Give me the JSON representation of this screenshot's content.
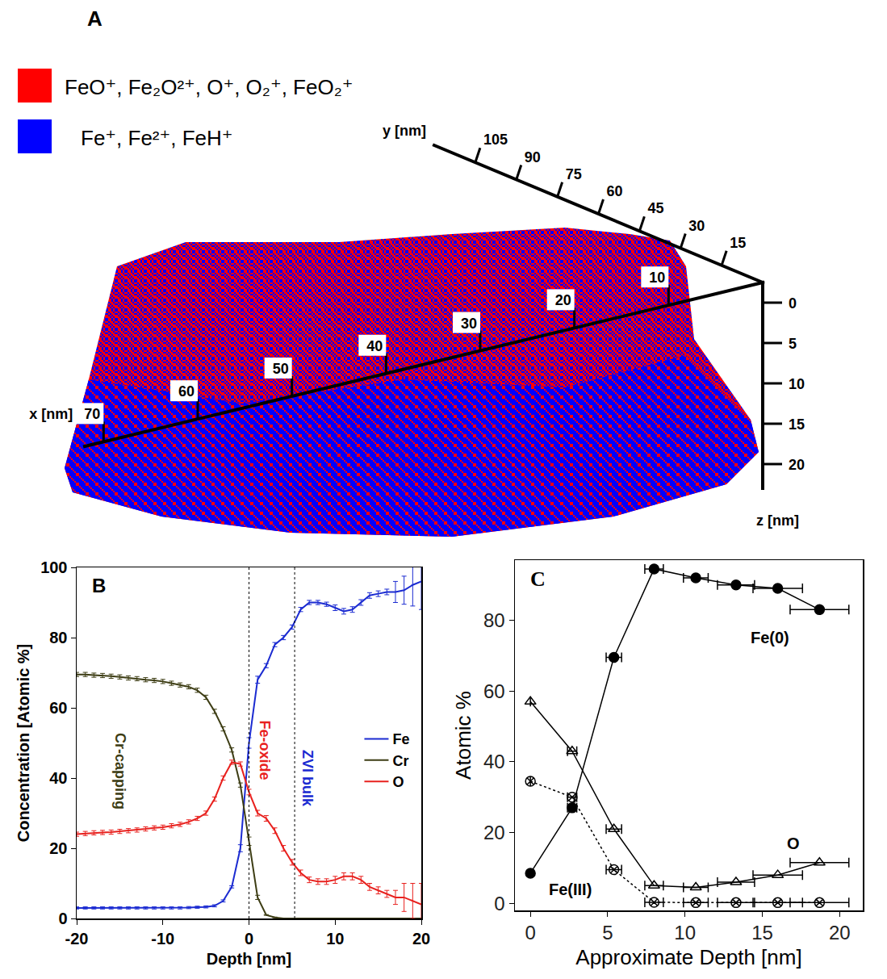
{
  "panel_a": {
    "panel": "A",
    "legend": [
      {
        "label": "FeO⁺, Fe₂O²⁺, O⁺, O₂⁺, FeO₂⁺",
        "color": "#ff0000"
      },
      {
        "label": "Fe⁺, Fe²⁺, FeH⁺",
        "color": "#0000ff"
      }
    ],
    "axes": {
      "x": {
        "title": "x [nm]",
        "ticks": [
          10,
          20,
          30,
          40,
          50,
          60,
          70
        ],
        "lim": [
          0,
          72
        ]
      },
      "y": {
        "title": "y [nm]",
        "ticks": [
          15,
          30,
          45,
          60,
          75,
          90,
          105
        ],
        "lim": [
          0,
          120
        ]
      },
      "z": {
        "title": "z [nm]",
        "ticks": [
          0,
          5,
          10,
          15,
          20
        ],
        "lim": [
          -2.5,
          23
        ]
      }
    }
  },
  "chart_data": [
    {
      "type": "line",
      "panel": "B",
      "x_label": "Depth [nm]",
      "y_label": "Concentration [Atomic %]",
      "xlim": [
        -20,
        20
      ],
      "xticks": [
        -20,
        -10,
        0,
        10,
        20
      ],
      "ylim": [
        0,
        100
      ],
      "yticks": [
        0,
        20,
        40,
        60,
        80,
        100
      ],
      "grid": false,
      "legend": "right",
      "vlines": [
        0,
        5.3
      ],
      "x": [
        -20,
        -19,
        -18,
        -17,
        -16,
        -15,
        -14,
        -13,
        -12,
        -11,
        -10,
        -9,
        -8,
        -7,
        -6,
        -5,
        -4,
        -3,
        -2,
        -1,
        0,
        1,
        2,
        3,
        4,
        5,
        6,
        7,
        8,
        9,
        10,
        11,
        12,
        13,
        14,
        15,
        16,
        17,
        18,
        19,
        20
      ],
      "series": [
        {
          "name": "Fe",
          "color": "#1b2bd1",
          "values": [
            3,
            3,
            3,
            3,
            3,
            3,
            3,
            3,
            3,
            3,
            3,
            3,
            3,
            3.1,
            3.2,
            3.3,
            3.6,
            5,
            9,
            20,
            50,
            68,
            72,
            78,
            80,
            83,
            88,
            90,
            90,
            89.5,
            88.5,
            87.5,
            88,
            90,
            92,
            92.5,
            93,
            93,
            93.5,
            95,
            96
          ],
          "errors": [
            0.3,
            0.3,
            0.3,
            0.3,
            0.3,
            0.3,
            0.3,
            0.3,
            0.3,
            0.3,
            0.3,
            0.3,
            0.3,
            0.3,
            0.3,
            0.3,
            0.3,
            0.3,
            0.3,
            1,
            1.5,
            1,
            0.6,
            0.6,
            0.6,
            0.6,
            0.6,
            0.6,
            0.6,
            0.6,
            0.8,
            0.8,
            0.8,
            0.8,
            0.8,
            0.8,
            0.8,
            3,
            4,
            6,
            8
          ]
        },
        {
          "name": "Cr",
          "color": "#3d3d14",
          "values": [
            69.5,
            69.5,
            69.3,
            69.2,
            69,
            68.8,
            68.5,
            68.3,
            68,
            67.8,
            67.5,
            67,
            66.5,
            66,
            65,
            63,
            59,
            54,
            48,
            38,
            22,
            6,
            1,
            0.3,
            0,
            0,
            0,
            0,
            0,
            0,
            0,
            0,
            0,
            0,
            0,
            0,
            0,
            0,
            0,
            0,
            0
          ],
          "errors": [
            0.6,
            0.6,
            0.6,
            0.6,
            0.6,
            0.6,
            0.6,
            0.6,
            0.6,
            0.6,
            0.6,
            0.6,
            0.6,
            0.6,
            0.6,
            0.6,
            0.6,
            0.6,
            0.6,
            0.6,
            1.2,
            0.6,
            0.1,
            0.1,
            0.1,
            0.1,
            0.1,
            0.1,
            0.1,
            0.1,
            0.1,
            0.1,
            0.1,
            0.1,
            0.1,
            0.1,
            0.1,
            0.1,
            0.1,
            0.1,
            0.1
          ]
        },
        {
          "name": "O",
          "color": "#e8211e",
          "values": [
            24,
            24.2,
            24.4,
            24.5,
            24.6,
            24.8,
            25,
            25.2,
            25.5,
            25.8,
            26,
            26.4,
            26.8,
            27.5,
            28.5,
            30,
            34,
            40,
            44.5,
            44,
            36,
            30,
            28.5,
            25,
            20,
            16,
            13,
            11,
            10.5,
            10.5,
            11,
            12,
            12,
            11,
            9,
            8,
            7,
            6,
            6,
            5,
            4
          ],
          "errors": [
            0.6,
            0.6,
            0.6,
            0.6,
            0.6,
            0.6,
            0.6,
            0.6,
            0.6,
            0.6,
            0.6,
            0.6,
            0.6,
            0.6,
            0.6,
            0.6,
            0.6,
            0.6,
            0.6,
            0.6,
            0.8,
            0.8,
            0.8,
            0.8,
            0.8,
            0.8,
            0.8,
            0.8,
            0.8,
            0.8,
            1,
            1,
            1,
            1,
            1,
            1,
            1,
            2,
            4,
            5,
            6
          ]
        }
      ],
      "annotations": [
        {
          "text": "Cr-capping",
          "x": -15,
          "y": 42,
          "color": "#3d3d14"
        },
        {
          "text": "Fe-oxide",
          "x": 1.8,
          "y": 48,
          "color": "#e8211e"
        },
        {
          "text": "ZVI bulk",
          "x": 6.8,
          "y": 40,
          "color": "#1b2bd1"
        }
      ]
    },
    {
      "type": "line",
      "panel": "C",
      "x_label": "Approximate Depth [nm]",
      "y_label": "Atomic %",
      "xlim": [
        -1,
        21.5
      ],
      "xticks": [
        0,
        5,
        10,
        15,
        20
      ],
      "ylim": [
        -2,
        97
      ],
      "yticks": [
        0,
        20,
        40,
        60,
        80
      ],
      "grid": false,
      "x": [
        0,
        2.7,
        5.4,
        8,
        10.7,
        13.3,
        16,
        18.7
      ],
      "series": [
        {
          "color": "#000000",
          "marker": "circle",
          "line_style": "solid",
          "values": [
            8.5,
            27,
            69.5,
            94.5,
            92,
            90,
            89,
            83
          ],
          "x_errors": [
            0,
            0.3,
            0.5,
            0.6,
            0.8,
            1.2,
            1.6,
            1.9
          ]
        },
        {
          "color": "#000000",
          "marker": "triangle-up-open",
          "line_style": "solid",
          "values": [
            57,
            43,
            21,
            5,
            4.5,
            6,
            8,
            11.5
          ],
          "x_errors": [
            0,
            0.3,
            0.5,
            0.6,
            0.8,
            1.2,
            1.6,
            1.9
          ]
        },
        {
          "color": "#000000",
          "marker": "circle-x-open",
          "line_style": "dot",
          "values": [
            34.5,
            30,
            9.5,
            0.3,
            0.2,
            0.2,
            0.2,
            0.2
          ],
          "x_errors": [
            0,
            0.3,
            0.5,
            0.6,
            0.8,
            1.2,
            1.6,
            1.9
          ]
        }
      ],
      "annotations": [
        {
          "text": "Fe(0)",
          "x": 15.5,
          "y": 75,
          "color": "#000000"
        },
        {
          "text": "O",
          "x": 17,
          "y": 17,
          "color": "#000000"
        },
        {
          "text": "Fe(III)",
          "x": 2.6,
          "y": 4,
          "color": "#000000"
        }
      ]
    }
  ]
}
